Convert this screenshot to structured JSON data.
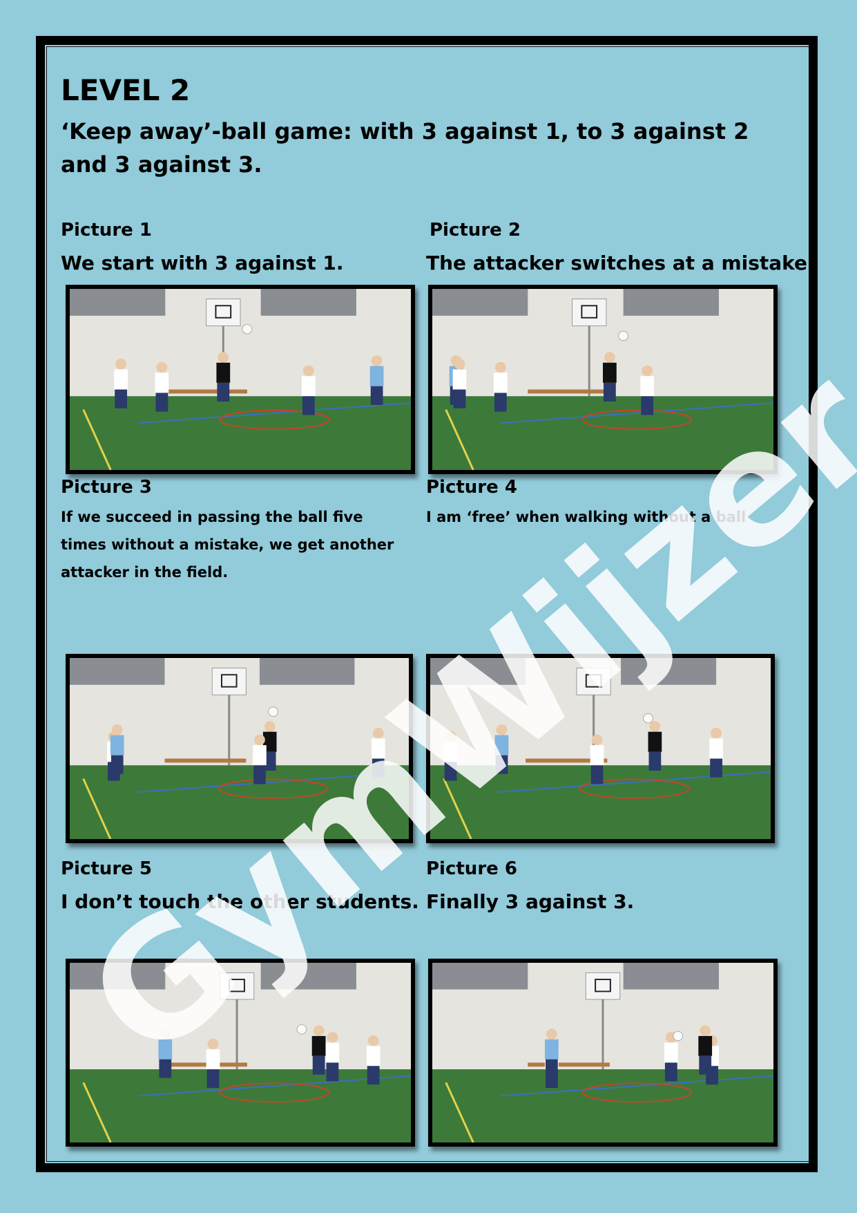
{
  "header": {
    "level": "LEVEL 2",
    "subtitle": "‘Keep away’-ball game: with 3 against 1, to 3 against 2 and 3 against 3."
  },
  "pictures": [
    {
      "label": "Picture 1",
      "description": "We start with 3 against 1."
    },
    {
      "label": "Picture 2",
      "description": "The attacker switches at a mistake."
    },
    {
      "label": "Picture 3",
      "description": "If we succeed in passing the ball five times without a mistake, we get another attacker in the field."
    },
    {
      "label": "Picture 4",
      "description": "I am ‘free’ when walking without a ball"
    },
    {
      "label": "Picture 5",
      "description": "I don’t touch the other students."
    },
    {
      "label": "Picture 6",
      "description": "Finally 3 against 3."
    }
  ],
  "watermark": "GymWijzer",
  "colors": {
    "background": "#92cbda",
    "frame": "#000000",
    "floor": "#3d7a3a",
    "wall": "#e6e4de"
  }
}
